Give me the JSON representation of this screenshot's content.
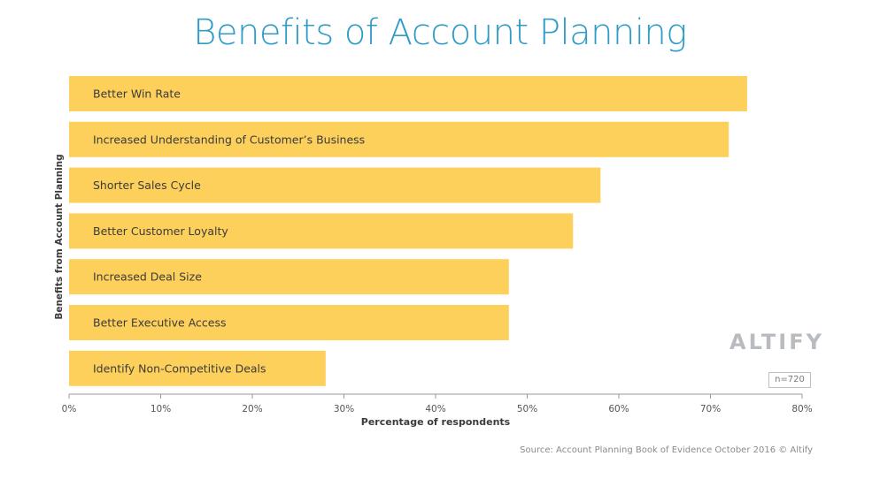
{
  "chart_data": {
    "type": "bar",
    "orientation": "horizontal",
    "title": "Benefits of Account Planning",
    "xlabel": "Percentage of respondents",
    "ylabel": "Benefits from Account Planning",
    "categories": [
      "Better Win Rate",
      "Increased Understanding of Customer’s Business",
      "Shorter Sales Cycle",
      "Better Customer Loyalty",
      "Increased Deal Size",
      "Better Executive Access",
      "Identify Non-Competitive Deals"
    ],
    "values": [
      74,
      72,
      58,
      55,
      48,
      48,
      28
    ],
    "xlim": [
      0,
      80
    ],
    "xticks": [
      "0%",
      "10%",
      "20%",
      "30%",
      "40%",
      "50%",
      "60%",
      "70%",
      "80%"
    ],
    "grid": false,
    "bar_color": "#fdd05c"
  },
  "logo_text": "ALTIFY",
  "sample_size": "n=720",
  "source": "Source: Account Planning Book of Evidence October 2016 © Altify",
  "colors": {
    "title": "#2e9cc7",
    "bar": "#fdd05c",
    "axis": "#9a9a9a",
    "text": "#3b3b3b"
  }
}
